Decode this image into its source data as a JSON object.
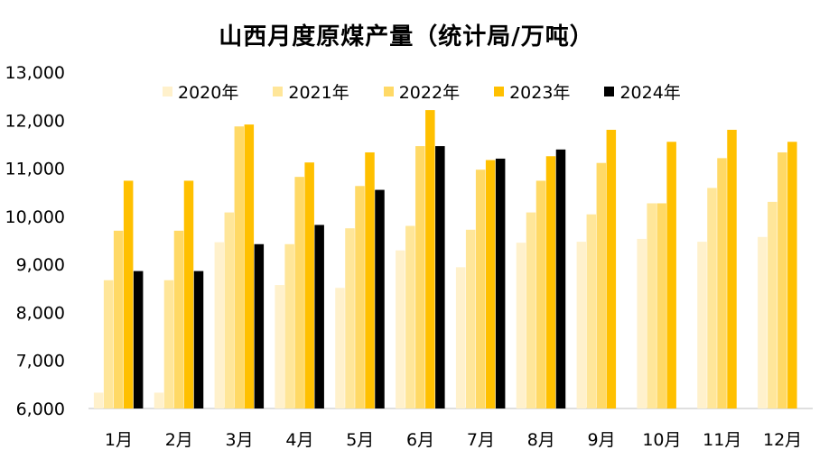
{
  "chart_data": {
    "type": "bar",
    "title": "山西月度原煤产量（统计局/万吨）",
    "categories": [
      "1月",
      "2月",
      "3月",
      "4月",
      "5月",
      "6月",
      "7月",
      "8月",
      "9月",
      "10月",
      "11月",
      "12月"
    ],
    "ylim": [
      6000,
      13000
    ],
    "yticks": [
      "6,000",
      "7,000",
      "8,000",
      "9,000",
      "10,000",
      "11,000",
      "12,000",
      "13,000"
    ],
    "ytick_values": [
      6000,
      7000,
      8000,
      9000,
      10000,
      11000,
      12000,
      13000
    ],
    "grid": false,
    "legend_position": "top",
    "series": [
      {
        "name": "2020年",
        "color": "#FFF1CC",
        "values": [
          6330,
          6330,
          9460,
          8570,
          8510,
          9290,
          8940,
          9450,
          9470,
          9530,
          9470,
          9570
        ]
      },
      {
        "name": "2021年",
        "color": "#FFE699",
        "values": [
          8670,
          8670,
          10080,
          9420,
          9750,
          9800,
          9720,
          10080,
          10040,
          10270,
          10590,
          10300
        ]
      },
      {
        "name": "2022年",
        "color": "#FFD966",
        "values": [
          9700,
          9700,
          11870,
          10820,
          10630,
          11460,
          10970,
          10740,
          11110,
          10270,
          11210,
          11330
        ]
      },
      {
        "name": "2023年",
        "color": "#FFC000",
        "values": [
          10740,
          10740,
          11910,
          11120,
          11330,
          12210,
          11170,
          11250,
          11800,
          11550,
          11800,
          11550
        ]
      },
      {
        "name": "2024年",
        "color": "#000000",
        "values": [
          8860,
          8860,
          9420,
          9820,
          10550,
          11460,
          11200,
          11390,
          null,
          null,
          null,
          null
        ]
      }
    ]
  }
}
